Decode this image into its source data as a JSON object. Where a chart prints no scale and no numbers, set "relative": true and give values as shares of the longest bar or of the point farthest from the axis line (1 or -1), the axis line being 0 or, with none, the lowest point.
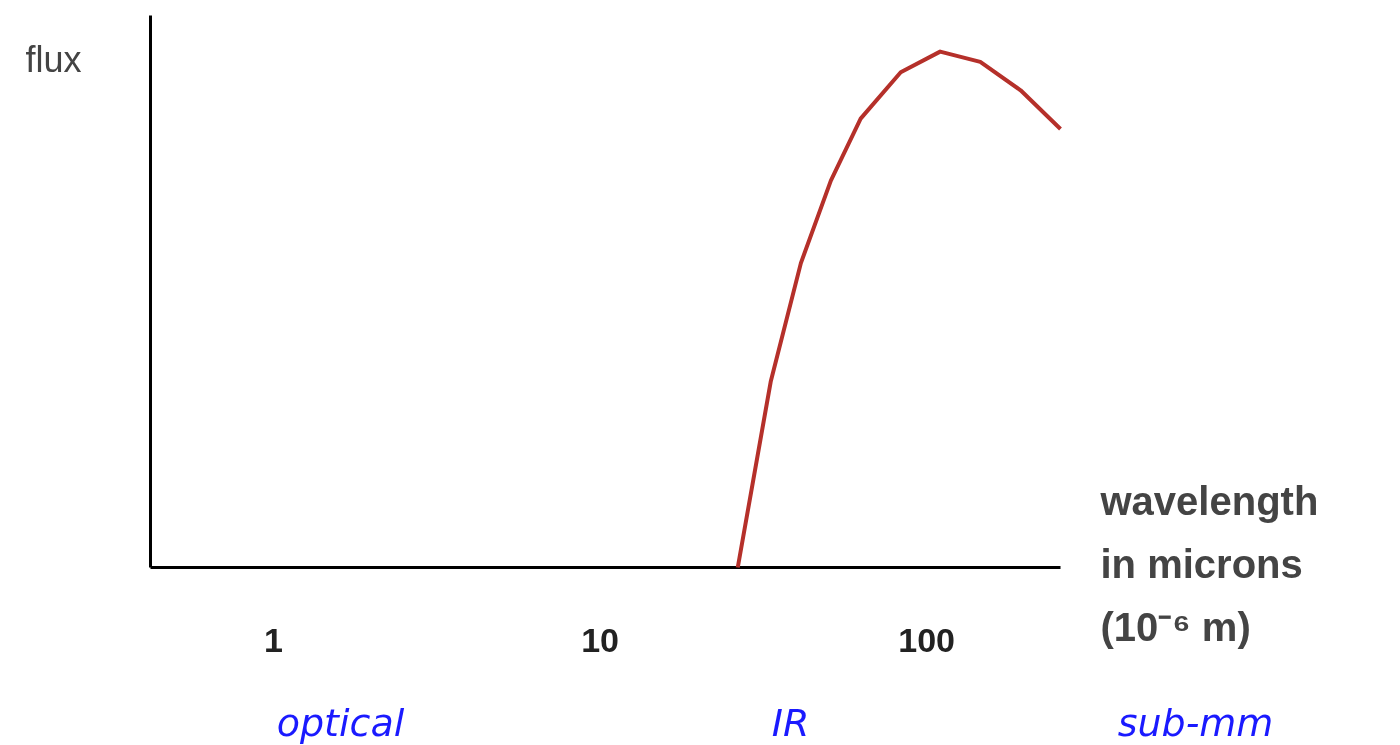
{
  "chart_data": {
    "type": "line",
    "relative": true,
    "log": "x",
    "ylabel": "flux",
    "xlabel": "wavelength\nin microns\n(10⁻⁶ m)",
    "xlim": [
      0.42,
      257
    ],
    "xticks": [
      1,
      10,
      100
    ],
    "grid": false,
    "marker": "none",
    "line_style": "solid",
    "annotations": [
      "optical",
      "IR",
      "sub-mm"
    ],
    "series": [
      {
        "color": "#b5302a",
        "x": [
          26.4,
          33.3,
          41.2,
          50.9,
          62.8,
          83.3,
          110,
          146,
          194,
          257
        ],
        "values": [
          0,
          0.36,
          0.59,
          0.75,
          0.87,
          0.96,
          1,
          0.98,
          0.925,
          0.85
        ]
      }
    ]
  }
}
